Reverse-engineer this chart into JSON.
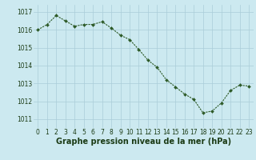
{
  "x": [
    0,
    1,
    2,
    3,
    4,
    5,
    6,
    7,
    8,
    9,
    10,
    11,
    12,
    13,
    14,
    15,
    16,
    17,
    18,
    19,
    20,
    21,
    22,
    23
  ],
  "y": [
    1016.0,
    1016.3,
    1016.8,
    1016.5,
    1016.2,
    1016.3,
    1016.3,
    1016.45,
    1016.1,
    1015.7,
    1015.45,
    1014.9,
    1014.3,
    1013.9,
    1013.2,
    1012.8,
    1012.4,
    1012.1,
    1011.35,
    1011.45,
    1011.9,
    1012.6,
    1012.9,
    1012.85
  ],
  "line_color": "#2d5a27",
  "marker": "D",
  "marker_size": 2.0,
  "line_width": 0.8,
  "bg_color": "#cce9f0",
  "grid_color": "#aacdd8",
  "xlabel": "Graphe pression niveau de la mer (hPa)",
  "xlabel_fontsize": 7,
  "xlabel_color": "#1a3a14",
  "tick_label_color": "#1a3a14",
  "tick_fontsize": 5.5,
  "ylim": [
    1010.5,
    1017.4
  ],
  "yticks": [
    1011,
    1012,
    1013,
    1014,
    1015,
    1016,
    1017
  ],
  "xticks": [
    0,
    1,
    2,
    3,
    4,
    5,
    6,
    7,
    8,
    9,
    10,
    11,
    12,
    13,
    14,
    15,
    16,
    17,
    18,
    19,
    20,
    21,
    22,
    23
  ],
  "xlim": [
    -0.5,
    23.5
  ]
}
